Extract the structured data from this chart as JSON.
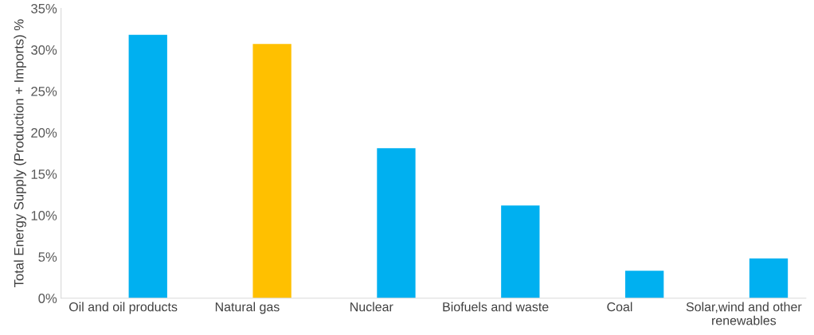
{
  "chart_data": {
    "type": "bar",
    "ylabel": "Total Energy Supply (Production + Imports) %",
    "categories": [
      "Oil and oil products",
      "Natural gas",
      "Nuclear",
      "Biofuels and waste",
      "Coal",
      "Solar,wind and other\nrenewables"
    ],
    "values": [
      31.8,
      30.7,
      18.1,
      11.2,
      3.3,
      4.8
    ],
    "colors": [
      "#00b0f0",
      "#ffc000",
      "#00b0f0",
      "#00b0f0",
      "#00b0f0",
      "#00b0f0"
    ],
    "ylim": [
      0,
      35
    ],
    "yticks": [
      {
        "value": 0,
        "label": "0%"
      },
      {
        "value": 5,
        "label": "5%"
      },
      {
        "value": 10,
        "label": "10%"
      },
      {
        "value": 15,
        "label": "15%"
      },
      {
        "value": 20,
        "label": "20%"
      },
      {
        "value": 25,
        "label": "25%"
      },
      {
        "value": 30,
        "label": "30%"
      },
      {
        "value": 35,
        "label": "35%"
      }
    ],
    "grid": false,
    "legend": false
  }
}
